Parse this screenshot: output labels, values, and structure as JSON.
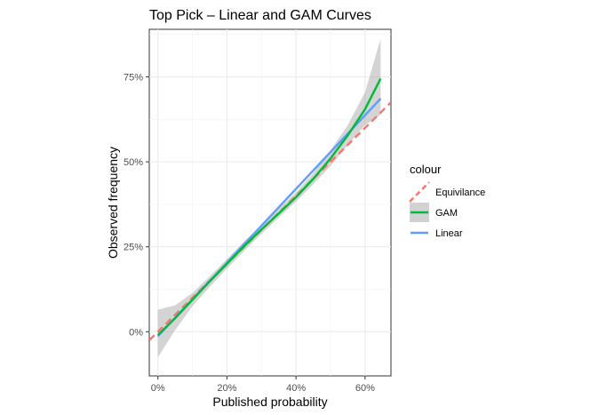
{
  "chart_data": {
    "type": "line",
    "title": "Top Pick – Linear and GAM Curves",
    "xlabel": "Published probability",
    "ylabel": "Observed frequency",
    "xlim": [
      -0.025,
      0.675
    ],
    "ylim": [
      -0.13,
      0.89
    ],
    "x_ticks": [
      0,
      0.2,
      0.4,
      0.6
    ],
    "x_tick_labels": [
      "0%",
      "20%",
      "40%",
      "60%"
    ],
    "y_ticks": [
      0,
      0.25,
      0.5,
      0.75
    ],
    "y_tick_labels": [
      "0%",
      "25%",
      "50%",
      "75%"
    ],
    "grid": true,
    "legend": {
      "title": "colour",
      "position": "right",
      "items": [
        {
          "label": "Equivilance",
          "color": "#f8766d",
          "style": "dashed"
        },
        {
          "label": "GAM",
          "color": "#00ba38",
          "style": "solid",
          "band": true
        },
        {
          "label": "Linear",
          "color": "#619cff",
          "style": "solid"
        }
      ]
    },
    "series": [
      {
        "name": "Equivilance",
        "color": "#f8766d",
        "dash": true,
        "x": [
          -0.025,
          0.675
        ],
        "y": [
          -0.025,
          0.675
        ]
      },
      {
        "name": "GAM",
        "color": "#00ba38",
        "x": [
          0,
          0.05,
          0.1,
          0.15,
          0.2,
          0.25,
          0.3,
          0.35,
          0.4,
          0.45,
          0.5,
          0.55,
          0.6,
          0.645
        ],
        "y": [
          -0.01,
          0.04,
          0.094,
          0.148,
          0.2,
          0.252,
          0.301,
          0.348,
          0.396,
          0.45,
          0.51,
          0.578,
          0.655,
          0.745
        ],
        "band_lower": [
          -0.075,
          0.005,
          0.075,
          0.132,
          0.186,
          0.238,
          0.288,
          0.336,
          0.383,
          0.434,
          0.488,
          0.55,
          0.608,
          0.638
        ],
        "band_upper": [
          0.065,
          0.078,
          0.114,
          0.163,
          0.214,
          0.266,
          0.314,
          0.362,
          0.41,
          0.466,
          0.534,
          0.608,
          0.705,
          0.862
        ]
      },
      {
        "name": "Linear",
        "color": "#619cff",
        "x": [
          0,
          0.645
        ],
        "y": [
          -0.013,
          0.686
        ]
      }
    ]
  }
}
